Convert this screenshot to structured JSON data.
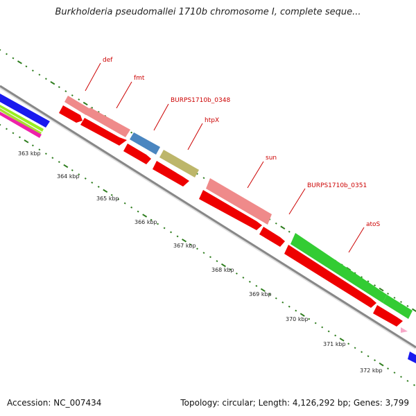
{
  "header": {
    "title": "Burkholderia pseudomallei 1710b chromosome I, complete seque..."
  },
  "footer": {
    "accession": "Accession: NC_007434",
    "summary": "Topology: circular; Length: 4,126,292 bp; Genes: 3,799"
  },
  "map": {
    "scale_ticks": [
      "363 kbp",
      "364 kbp",
      "365 kbp",
      "366 kbp",
      "367 kbp",
      "368 kbp",
      "369 kbp",
      "370 kbp",
      "371 kbp",
      "372 kbp"
    ],
    "colors": {
      "backbone": "#888888",
      "cds": "#ee0000",
      "gene_pink": "#ef8a8a",
      "gene_blue": "#4a86c0",
      "gene_olive": "#bdb66a",
      "gene_green": "#33cc33",
      "label": "#cc0000",
      "tick": "#2e7d1e"
    },
    "gene_labels": [
      "def",
      "fmt",
      "BURPS1710b_0348",
      "htpX",
      "sun",
      "BURPS1710b_0351",
      "atoS"
    ]
  }
}
